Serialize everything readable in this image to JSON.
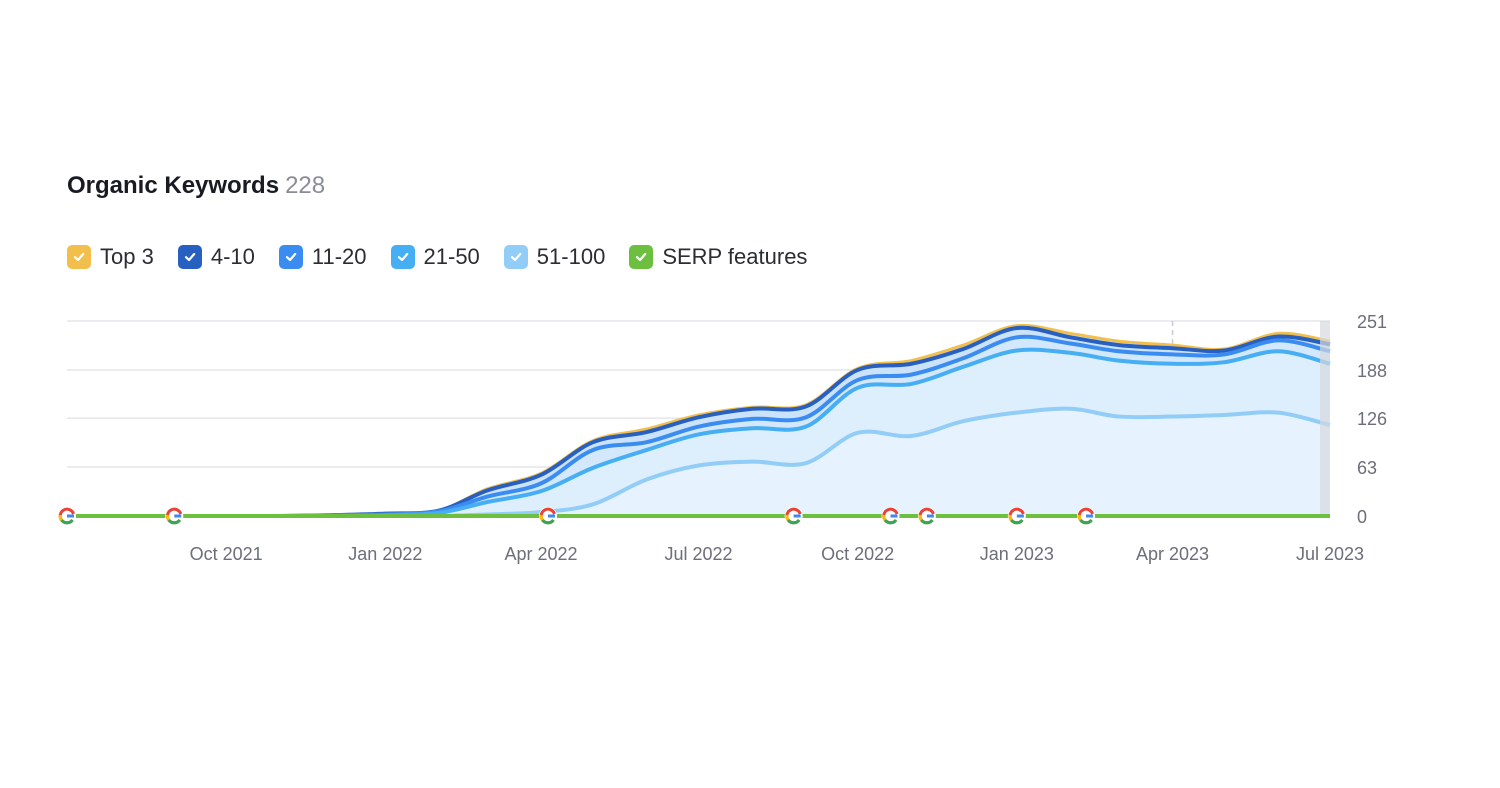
{
  "header": {
    "title": "Organic Keywords",
    "count": "228"
  },
  "legend": [
    {
      "label": "Top 3",
      "color": "#f2bf4d",
      "checked": true
    },
    {
      "label": "4-10",
      "color": "#2760c0",
      "checked": true
    },
    {
      "label": "11-20",
      "color": "#3a8cf0",
      "checked": true
    },
    {
      "label": "21-50",
      "color": "#46aef3",
      "checked": true
    },
    {
      "label": "51-100",
      "color": "#92cdf8",
      "checked": true
    },
    {
      "label": "SERP features",
      "color": "#6cbf3f",
      "checked": true
    }
  ],
  "chart_data": {
    "type": "area",
    "title": "Organic Keywords",
    "x": [
      "2021-07",
      "2021-08",
      "2021-09",
      "2021-10",
      "2021-11",
      "2021-12",
      "2022-01",
      "2022-02",
      "2022-03",
      "2022-04",
      "2022-05",
      "2022-06",
      "2022-07",
      "2022-08",
      "2022-09",
      "2022-10",
      "2022-11",
      "2022-12",
      "2023-01",
      "2023-02",
      "2023-03",
      "2023-04",
      "2023-05",
      "2023-06",
      "2023-07"
    ],
    "x_tick_labels": [
      "Oct 2021",
      "Jan 2022",
      "Apr 2022",
      "Jul 2022",
      "Oct 2022",
      "Jan 2023",
      "Apr 2023",
      "Jul 2023"
    ],
    "y_ticks": [
      "251",
      "188",
      "126",
      "63",
      "0"
    ],
    "ylim": [
      0,
      251
    ],
    "series": [
      {
        "name": "Top 3",
        "color": "#f2bf4d",
        "values": [
          0,
          0,
          0,
          0,
          0,
          1,
          3,
          7,
          35,
          55,
          97,
          112,
          130,
          140,
          143,
          190,
          200,
          220,
          245,
          235,
          225,
          220,
          215,
          235,
          225
        ]
      },
      {
        "name": "4-10",
        "color": "#2760c0",
        "values": [
          0,
          0,
          0,
          0,
          0,
          1,
          3,
          7,
          33,
          53,
          95,
          108,
          127,
          138,
          141,
          188,
          196,
          215,
          242,
          230,
          220,
          216,
          213,
          231,
          221
        ]
      },
      {
        "name": "11-20",
        "color": "#3a8cf0",
        "values": [
          0,
          0,
          0,
          0,
          0,
          1,
          2,
          6,
          25,
          42,
          85,
          95,
          115,
          125,
          127,
          175,
          182,
          203,
          230,
          222,
          212,
          208,
          208,
          226,
          212
        ]
      },
      {
        "name": "21-50",
        "color": "#46aef3",
        "values": [
          0,
          0,
          0,
          0,
          0,
          0,
          1,
          4,
          18,
          32,
          62,
          85,
          105,
          113,
          115,
          165,
          170,
          192,
          213,
          210,
          200,
          196,
          198,
          212,
          196
        ]
      },
      {
        "name": "51-100",
        "color": "#92cdf8",
        "values": [
          0,
          0,
          0,
          0,
          0,
          0,
          0,
          0,
          2,
          5,
          15,
          47,
          65,
          70,
          68,
          107,
          103,
          122,
          133,
          138,
          128,
          128,
          130,
          133,
          117
        ]
      },
      {
        "name": "SERP features",
        "color": "#6cbf3f",
        "values": [
          0,
          0,
          0,
          0,
          0,
          0,
          0,
          0,
          0,
          0,
          0,
          0,
          0,
          0,
          0,
          0,
          0,
          0,
          0,
          0,
          0,
          0,
          0,
          0,
          0
        ]
      }
    ],
    "google_update_markers": [
      "2021-07-01",
      "2021-09-01",
      "2022-04-05",
      "2022-08-25",
      "2022-10-20",
      "2022-11-10",
      "2023-01-01",
      "2023-02-10"
    ],
    "vertical_marker": "2023-04-01",
    "grid": true
  }
}
